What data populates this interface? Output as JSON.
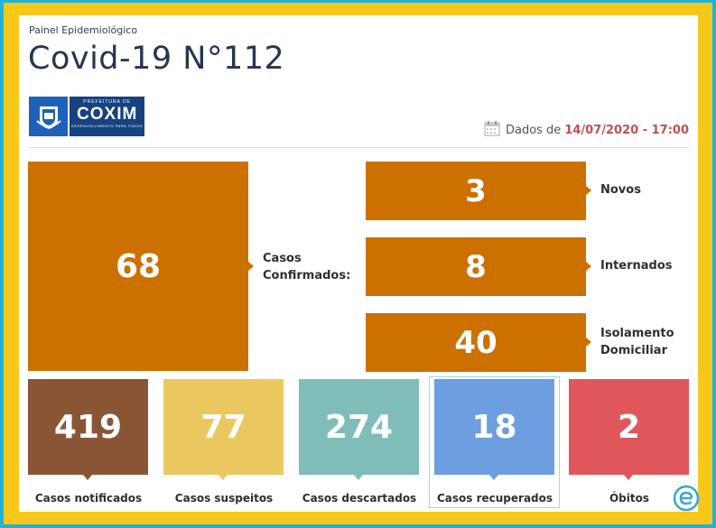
{
  "header": {
    "subtitle": "Painel Epidemiológico",
    "title": "Covid-19 N°112"
  },
  "logo": {
    "line1": "PREFEITURA DE",
    "line2": "COXIM",
    "line3": "DESENVOLVIMENTO PARA TODOS"
  },
  "date": {
    "prefix": "Dados de",
    "value": "14/07/2020 - 17:00",
    "icon": "calendar-icon"
  },
  "confirmed": {
    "value": "68",
    "label_line1": "Casos",
    "label_line2": "Confirmados:"
  },
  "breakdown": [
    {
      "value": "3",
      "label_line1": "Novos",
      "label_line2": ""
    },
    {
      "value": "8",
      "label_line1": "Internados",
      "label_line2": ""
    },
    {
      "value": "40",
      "label_line1": "Isolamento",
      "label_line2": "Domiciliar"
    }
  ],
  "stats": [
    {
      "value": "419",
      "label": "Casos notificados",
      "color": "#8a5535"
    },
    {
      "value": "77",
      "label": "Casos suspeitos",
      "color": "#ebc85f"
    },
    {
      "value": "274",
      "label": "Casos descartados",
      "color": "#7fbdb9"
    },
    {
      "value": "18",
      "label": "Casos recuperados",
      "color": "#6c9ee0"
    },
    {
      "value": "2",
      "label": "Óbitos",
      "color": "#df575a"
    }
  ],
  "colors": {
    "accent_orange": "#cc7000",
    "frame_yellow": "#f7c81b",
    "frame_blue": "#1fb3d8",
    "title": "#253650",
    "date_red": "#c0504d"
  }
}
